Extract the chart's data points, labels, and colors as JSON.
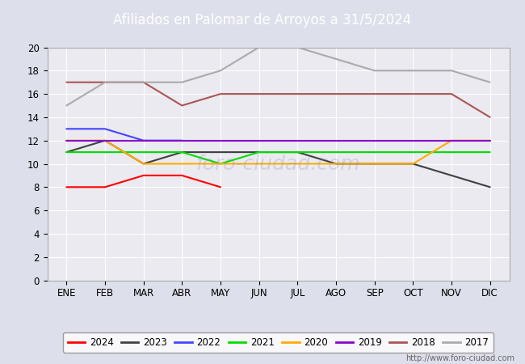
{
  "title": "Afiliados en Palomar de Arroyos a 31/5/2024",
  "title_bg": "#4472c4",
  "ylim": [
    0,
    20
  ],
  "yticks": [
    0,
    2,
    4,
    6,
    8,
    10,
    12,
    14,
    16,
    18,
    20
  ],
  "months": [
    "ENE",
    "FEB",
    "MAR",
    "ABR",
    "MAY",
    "JUN",
    "JUL",
    "AGO",
    "SEP",
    "OCT",
    "NOV",
    "DIC"
  ],
  "series": {
    "2024": {
      "color": "#ff0000",
      "data": [
        8,
        8,
        9,
        9,
        8,
        null,
        null,
        null,
        null,
        null,
        null,
        null
      ]
    },
    "2023": {
      "color": "#404040",
      "data": [
        11,
        12,
        10,
        11,
        11,
        11,
        11,
        10,
        10,
        10,
        9,
        8
      ]
    },
    "2022": {
      "color": "#4444ff",
      "data": [
        13,
        13,
        12,
        12,
        null,
        null,
        null,
        null,
        null,
        null,
        null,
        null
      ]
    },
    "2021": {
      "color": "#00dd00",
      "data": [
        11,
        11,
        11,
        11,
        10,
        11,
        11,
        11,
        11,
        11,
        11,
        11
      ]
    },
    "2020": {
      "color": "#ffaa00",
      "data": [
        12,
        12,
        10,
        10,
        10,
        10,
        10,
        10,
        10,
        10,
        12,
        12
      ]
    },
    "2019": {
      "color": "#8800cc",
      "data": [
        12,
        12,
        12,
        12,
        12,
        12,
        12,
        12,
        12,
        12,
        12,
        12
      ]
    },
    "2018": {
      "color": "#aa5555",
      "data": [
        17,
        17,
        17,
        15,
        16,
        16,
        16,
        16,
        16,
        16,
        16,
        14
      ]
    },
    "2017": {
      "color": "#aaaaaa",
      "data": [
        15,
        17,
        17,
        17,
        18,
        20,
        20,
        19,
        18,
        18,
        18,
        17
      ]
    }
  },
  "footer_url": "http://www.foro-ciudad.com",
  "bg_color": "#dde0eb",
  "plot_bg_color": "#eaeaf0",
  "grid_color": "#ffffff",
  "border_color": "#aaaaaa"
}
